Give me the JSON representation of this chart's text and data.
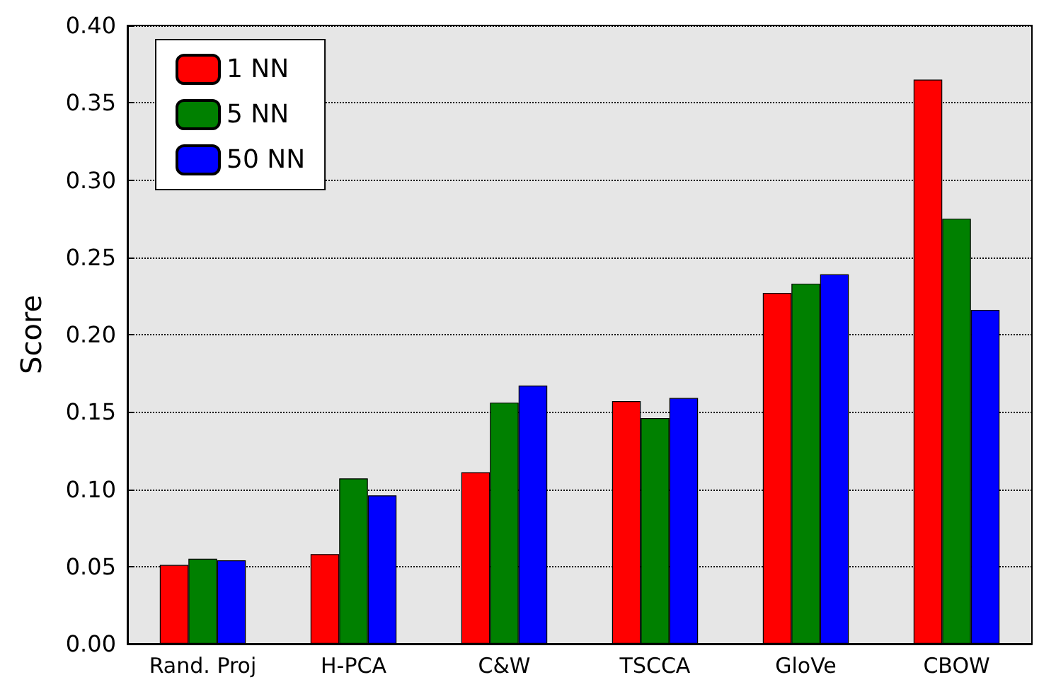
{
  "chart_data": {
    "type": "bar",
    "ylabel": "Score",
    "categories": [
      "Rand. Proj",
      "H-PCA",
      "C&W",
      "TSCCA",
      "GloVe",
      "CBOW"
    ],
    "series": [
      {
        "name": "1 NN",
        "color": "#ff0000",
        "values": [
          0.051,
          0.058,
          0.111,
          0.157,
          0.227,
          0.365
        ]
      },
      {
        "name": "5 NN",
        "color": "#008000",
        "values": [
          0.055,
          0.107,
          0.156,
          0.146,
          0.233,
          0.275
        ]
      },
      {
        "name": "50 NN",
        "color": "#0000ff",
        "values": [
          0.054,
          0.096,
          0.167,
          0.159,
          0.239,
          0.216
        ]
      }
    ],
    "ylim": [
      0,
      0.4
    ],
    "yticks": [
      {
        "value": 0,
        "label": "0.00"
      },
      0.05,
      {
        "value": 0.1,
        "label": "0.10"
      },
      0.15,
      {
        "value": 0.2,
        "label": "0.20"
      },
      0.25,
      {
        "value": 0.3,
        "label": "0.30"
      },
      0.35,
      {
        "value": 0.4,
        "label": "0.40"
      }
    ],
    "grid": "y",
    "legend": "top left"
  }
}
